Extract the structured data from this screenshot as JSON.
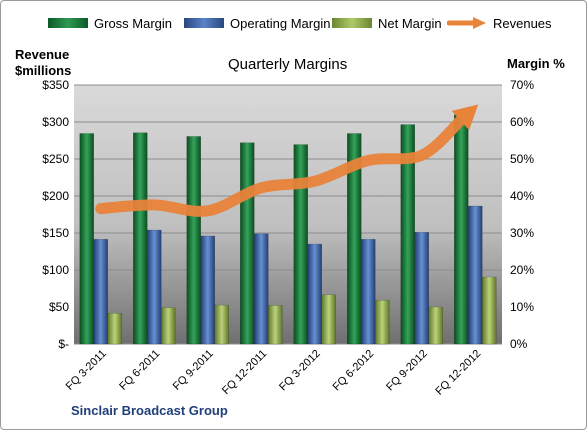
{
  "chart_data": {
    "type": "bar",
    "title": "Quarterly Margins",
    "subtitle": "",
    "ylabel_left": "Revenue $millions",
    "ylabel_right": "Margin %",
    "footer": "Sinclair Broadcast Group",
    "categories": [
      "FQ 3-2011",
      "FQ 6-2011",
      "FQ 9-2011",
      "FQ 12-2011",
      "FQ 3-2012",
      "FQ 6-2012",
      "FQ 9-2012",
      "FQ 12-2012"
    ],
    "series": [
      {
        "name": "Gross Margin",
        "type": "bar",
        "axis": "right",
        "color": "#1e7a3a",
        "values": [
          56.9,
          57.1,
          56.1,
          54.4,
          53.9,
          56.9,
          59.3,
          62.0
        ]
      },
      {
        "name": "Operating Margin",
        "type": "bar",
        "axis": "right",
        "color": "#3a5fa6",
        "values": [
          28.3,
          30.8,
          29.2,
          29.8,
          27.0,
          28.3,
          30.2,
          37.3
        ]
      },
      {
        "name": "Net Margin",
        "type": "bar",
        "axis": "right",
        "color": "#8fa84a",
        "values": [
          8.3,
          9.8,
          10.5,
          10.4,
          13.3,
          11.8,
          10.0,
          18.1
        ]
      },
      {
        "name": "Revenues",
        "type": "line",
        "axis": "left",
        "color": "#e8833a",
        "values": [
          183,
          188,
          180,
          211,
          220,
          248,
          255,
          320
        ]
      }
    ],
    "y_left": {
      "ylim": [
        0,
        350
      ],
      "ticks": [
        0,
        50,
        100,
        150,
        200,
        250,
        300,
        350
      ],
      "tick_labels": [
        "$-",
        "$50",
        "$100",
        "$150",
        "$200",
        "$250",
        "$300",
        "$350"
      ]
    },
    "y_right": {
      "ylim": [
        0,
        70
      ],
      "ticks": [
        0,
        10,
        20,
        30,
        40,
        50,
        60,
        70
      ],
      "tick_labels": [
        "0%",
        "10%",
        "20%",
        "30%",
        "40%",
        "50%",
        "60%",
        "70%"
      ]
    },
    "grid": true,
    "legend_position": "top"
  }
}
